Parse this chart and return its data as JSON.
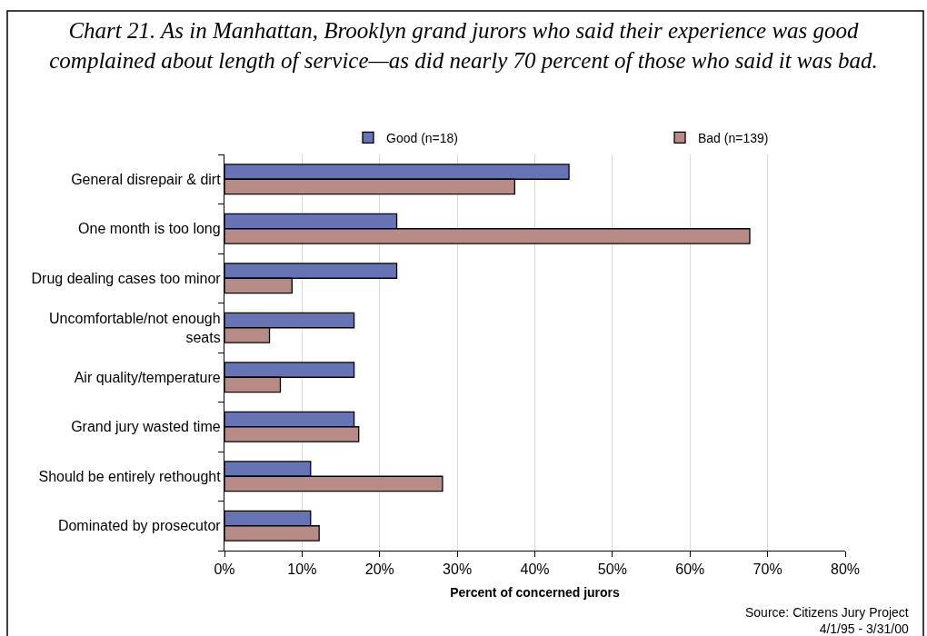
{
  "chart_data": {
    "type": "bar",
    "orientation": "horizontal",
    "title": "Chart 21. As in Manhattan, Brooklyn grand jurors who said their experience was good\ncomplained about length of service—as did nearly 70 percent of those who said it was bad.",
    "xlabel": "Percent of concerned jurors",
    "categories": [
      "General disrepair & dirt",
      "One month is too long",
      "Drug dealing cases too minor",
      "Uncomfortable/not enough seats",
      "Air quality/temperature",
      "Grand jury wasted time",
      "Should be entirely rethought",
      "Dominated by prosecutor"
    ],
    "series": [
      {
        "name": "Good (n=18)",
        "color": "#6673b4",
        "values": [
          44.4,
          22.2,
          22.2,
          16.7,
          16.7,
          16.7,
          11.1,
          11.1
        ]
      },
      {
        "name": "Bad (n=139)",
        "color": "#b78c87",
        "values": [
          37.4,
          67.7,
          8.7,
          5.8,
          7.2,
          17.3,
          28.1,
          12.2
        ]
      }
    ],
    "xlim": [
      0,
      80
    ],
    "xticks": [
      {
        "value": 0,
        "label": "0%"
      },
      {
        "value": 10,
        "label": "10%"
      },
      {
        "value": 20,
        "label": "20%"
      },
      {
        "value": 30,
        "label": "30%"
      },
      {
        "value": 40,
        "label": "40%"
      },
      {
        "value": 50,
        "label": "50%"
      },
      {
        "value": 60,
        "label": "60%"
      },
      {
        "value": 70,
        "label": "70%"
      },
      {
        "value": 80,
        "label": "80%"
      }
    ],
    "grid": "x",
    "legend": "top",
    "annotations": [
      "Source: Citizens Jury Project\n4/1/95 - 3/31/00"
    ]
  }
}
